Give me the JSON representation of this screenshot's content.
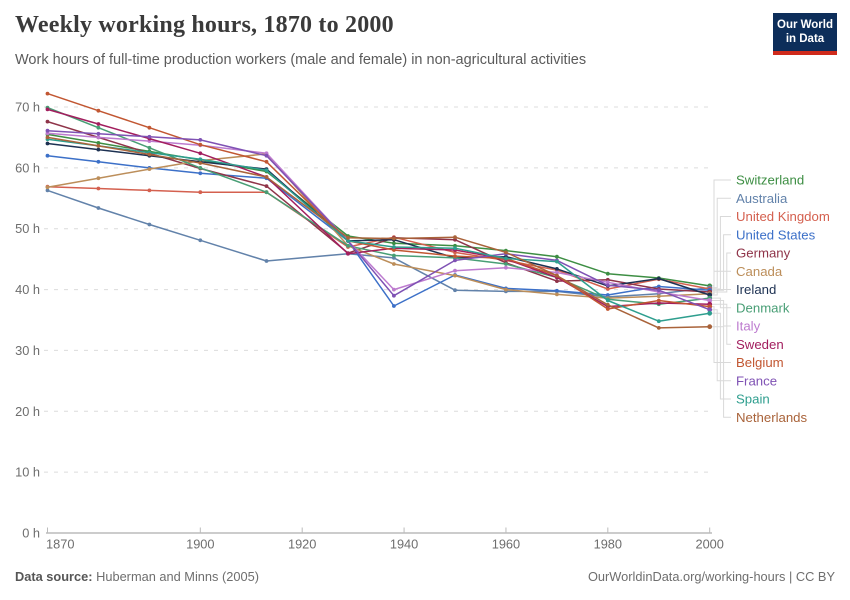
{
  "header": {
    "title": "Weekly working hours, 1870 to 2000",
    "subtitle": "Work hours of full-time production workers (male and female) in non-agricultural activities"
  },
  "logo": {
    "line1": "Our World",
    "line2": "in Data",
    "bg_color": "#0d2e5a",
    "accent_color": "#cf2a1b"
  },
  "chart_data": {
    "type": "line",
    "title": "Weekly working hours, 1870 to 2000",
    "subtitle": "Work hours of full-time production workers (male and female) in non-agricultural activities",
    "unit": "hours per week",
    "x": [
      1870,
      1880,
      1890,
      1900,
      1913,
      1929,
      1938,
      1950,
      1960,
      1970,
      1980,
      1990,
      2000
    ],
    "xlim": [
      1870,
      2000
    ],
    "ylim": [
      0,
      72.5
    ],
    "x_tick_labels": [
      "1870",
      "1900",
      "1920",
      "1940",
      "1960",
      "1980",
      "2000"
    ],
    "y_tick_labels": [
      "0 h",
      "10 h",
      "20 h",
      "30 h",
      "40 h",
      "50 h",
      "60 h",
      "70 h"
    ],
    "grid": "horizontal dashed",
    "legend_position": "right, ordered by value in 2000",
    "series": [
      {
        "name": "Switzerland",
        "color": "#3d8e43",
        "values": [
          65.5,
          64.1,
          62.7,
          61.3,
          59.4,
          48.8,
          47.6,
          47.2,
          46.4,
          45.4,
          42.6,
          41.9,
          40.6
        ]
      },
      {
        "name": "Australia",
        "color": "#6282aa",
        "values": [
          56.3,
          53.4,
          50.7,
          48.1,
          44.7,
          45.9,
          45.2,
          39.9,
          39.7,
          39.7,
          38.8,
          39.3,
          40.3
        ]
      },
      {
        "name": "United Kingdom",
        "color": "#d4604f",
        "values": [
          56.9,
          56.6,
          56.3,
          56.0,
          56.0,
          47.0,
          48.6,
          46.1,
          44.8,
          43.2,
          40.1,
          41.7,
          40.1
        ]
      },
      {
        "name": "United States",
        "color": "#3c70c8",
        "values": [
          62.0,
          61.0,
          60.0,
          59.1,
          58.3,
          48.0,
          37.3,
          42.4,
          40.2,
          39.8,
          39.1,
          40.5,
          39.9
        ]
      },
      {
        "name": "Germany",
        "color": "#8f3449",
        "values": [
          67.6,
          65.0,
          62.4,
          59.9,
          57.0,
          46.0,
          48.5,
          48.2,
          44.4,
          41.4,
          41.6,
          40.1,
          39.6
        ]
      },
      {
        "name": "Canada",
        "color": "#bc8e5a",
        "values": [
          56.8,
          58.3,
          59.8,
          61.2,
          62.3,
          47.2,
          44.2,
          42.3,
          40.0,
          39.2,
          38.6,
          38.9,
          39.3
        ]
      },
      {
        "name": "Ireland",
        "color": "#1d3152",
        "values": [
          64.0,
          63.0,
          62.0,
          61.0,
          59.8,
          48.0,
          48.2,
          45.2,
          45.4,
          43.4,
          40.6,
          41.8,
          39.1
        ]
      },
      {
        "name": "Denmark",
        "color": "#489e75",
        "values": [
          69.9,
          66.6,
          63.3,
          60.0,
          56.0,
          47.2,
          45.6,
          45.2,
          44.2,
          42.0,
          38.4,
          37.6,
          38.6
        ]
      },
      {
        "name": "Italy",
        "color": "#bd7bcf",
        "values": [
          65.7,
          65.0,
          64.4,
          63.7,
          62.4,
          48.0,
          40.0,
          43.1,
          43.6,
          42.8,
          41.2,
          39.6,
          38.2
        ]
      },
      {
        "name": "Sweden",
        "color": "#a21e5e",
        "values": [
          69.6,
          67.2,
          64.8,
          62.4,
          58.5,
          45.9,
          46.8,
          46.5,
          45.0,
          42.0,
          37.2,
          37.8,
          37.6
        ]
      },
      {
        "name": "Belgium",
        "color": "#c25732",
        "values": [
          72.2,
          69.4,
          66.6,
          63.8,
          61.0,
          48.0,
          46.5,
          45.5,
          45.1,
          42.3,
          36.8,
          38.2,
          37.2
        ]
      },
      {
        "name": "France",
        "color": "#7f52b4",
        "values": [
          66.1,
          65.6,
          65.1,
          64.6,
          62.0,
          48.0,
          39.0,
          44.8,
          45.9,
          44.8,
          40.7,
          39.9,
          36.7
        ]
      },
      {
        "name": "Spain",
        "color": "#2e9e8e",
        "values": [
          64.7,
          63.6,
          62.5,
          61.4,
          59.6,
          48.0,
          47.0,
          46.8,
          45.1,
          44.6,
          38.2,
          34.8,
          36.1
        ]
      },
      {
        "name": "Netherlands",
        "color": "#a9633a",
        "values": [
          65.0,
          63.6,
          62.2,
          60.8,
          58.5,
          48.5,
          48.4,
          48.6,
          46.1,
          42.3,
          37.5,
          33.7,
          33.9
        ]
      }
    ]
  },
  "footer": {
    "source_label": "Data source:",
    "source_value": "Huberman and Minns (2005)",
    "credit": "OurWorldinData.org/working-hours | CC BY"
  }
}
